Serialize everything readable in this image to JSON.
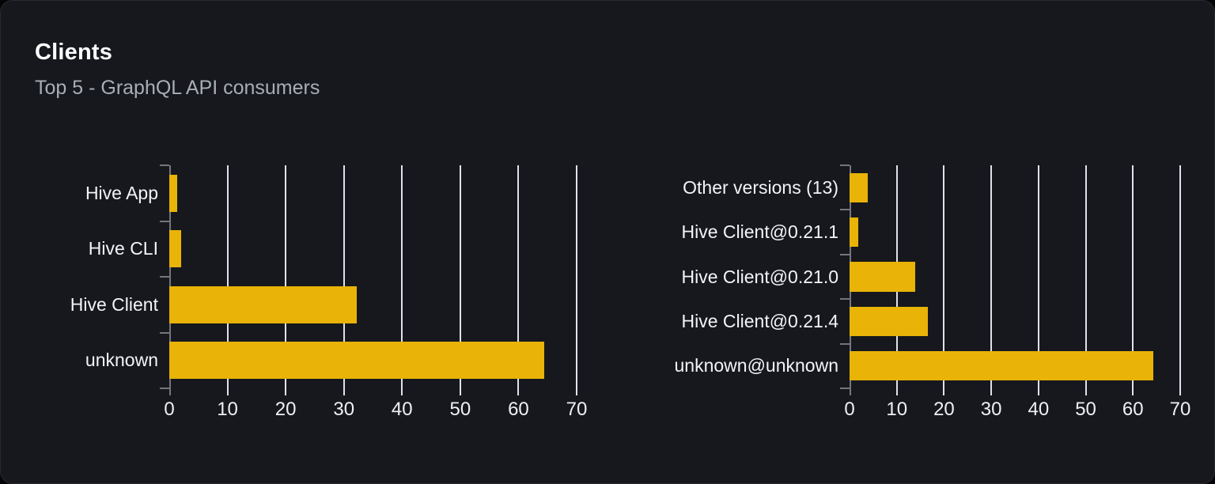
{
  "header": {
    "title": "Clients",
    "subtitle": "Top 5 - GraphQL API consumers"
  },
  "colors": {
    "page_bg": "#050507",
    "card_bg": "#16181d",
    "card_border": "#26292f",
    "bar": "#e9b308",
    "gridline": "#dfe3e9",
    "axis": "#74767c",
    "label": "#f3f4f6",
    "tick_label": "#eef0f3",
    "subtitle": "#a9aeb5"
  },
  "chart_data": [
    {
      "type": "bar",
      "orientation": "horizontal",
      "name": "clients-by-name",
      "categories": [
        "Hive App",
        "Hive CLI",
        "Hive Client",
        "unknown"
      ],
      "values": [
        1.3,
        2,
        32.2,
        64.4
      ],
      "xlim": [
        0,
        70
      ],
      "xticks": [
        0,
        10,
        20,
        30,
        40,
        50,
        60,
        70
      ],
      "grid": true,
      "legend": false
    },
    {
      "type": "bar",
      "orientation": "horizontal",
      "name": "clients-by-version",
      "categories": [
        "Other versions (13)",
        "Hive Client@0.21.1",
        "Hive Client@0.21.0",
        "Hive Client@0.21.4",
        "unknown@unknown"
      ],
      "values": [
        3.9,
        1.9,
        13.9,
        16.5,
        64.3
      ],
      "xlim": [
        0,
        70
      ],
      "xticks": [
        0,
        10,
        20,
        30,
        40,
        50,
        60,
        70
      ],
      "grid": true,
      "legend": false
    }
  ]
}
